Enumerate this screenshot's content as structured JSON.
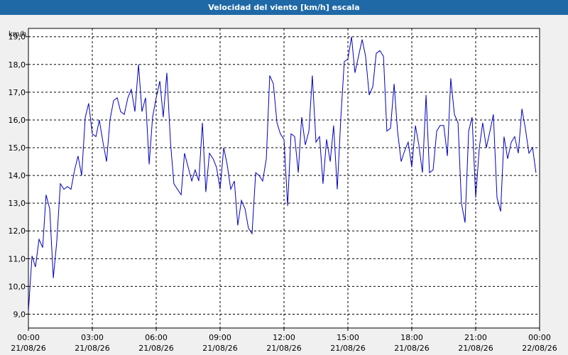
{
  "window": {
    "title": "Velocidad del viento [km/h] escala"
  },
  "colors": {
    "title_bar": "#1f69a6",
    "series_line": "#0000c0",
    "grid": "#000000",
    "background": "#f0f0f0",
    "plot_bg": "#ffffff"
  },
  "chart_data": {
    "type": "line",
    "title": "Velocidad del viento [km/h] escala",
    "ylabel": "km/h",
    "xlabel": "",
    "ylim": [
      8.5,
      19.3
    ],
    "xlim_hours": [
      0,
      24
    ],
    "grid": true,
    "y_ticks": [
      "9,0",
      "10,0",
      "11,0",
      "12,0",
      "13,0",
      "14,0",
      "15,0",
      "16,0",
      "17,0",
      "18,0",
      "19,0"
    ],
    "x_ticks": [
      {
        "time": "00:00",
        "date": "21/08/26"
      },
      {
        "time": "03:00",
        "date": "21/08/26"
      },
      {
        "time": "06:00",
        "date": "21/08/26"
      },
      {
        "time": "09:00",
        "date": "21/08/26"
      },
      {
        "time": "12:00",
        "date": "21/08/26"
      },
      {
        "time": "15:00",
        "date": "21/08/26"
      },
      {
        "time": "18:00",
        "date": "21/08/26"
      },
      {
        "time": "21:00",
        "date": "21/08/26"
      },
      {
        "time": "00:00",
        "date": "22/08/26"
      }
    ],
    "series": [
      {
        "points": [
          [
            0.0,
            9.1
          ],
          [
            0.17,
            11.1
          ],
          [
            0.33,
            10.7
          ],
          [
            0.5,
            11.7
          ],
          [
            0.67,
            11.4
          ],
          [
            0.83,
            13.3
          ],
          [
            1.0,
            12.8
          ],
          [
            1.17,
            10.3
          ],
          [
            1.33,
            11.6
          ],
          [
            1.5,
            13.7
          ],
          [
            1.67,
            13.5
          ],
          [
            1.83,
            13.6
          ],
          [
            2.0,
            13.5
          ],
          [
            2.17,
            14.2
          ],
          [
            2.33,
            14.7
          ],
          [
            2.5,
            14.0
          ],
          [
            2.67,
            16.1
          ],
          [
            2.83,
            16.6
          ],
          [
            3.0,
            15.5
          ],
          [
            3.17,
            15.4
          ],
          [
            3.33,
            16.0
          ],
          [
            3.5,
            15.2
          ],
          [
            3.67,
            14.5
          ],
          [
            3.83,
            16.0
          ],
          [
            4.0,
            16.7
          ],
          [
            4.17,
            16.8
          ],
          [
            4.33,
            16.3
          ],
          [
            4.5,
            16.2
          ],
          [
            4.67,
            16.8
          ],
          [
            4.83,
            17.1
          ],
          [
            5.0,
            16.3
          ],
          [
            5.17,
            18.0
          ],
          [
            5.33,
            16.3
          ],
          [
            5.5,
            16.8
          ],
          [
            5.67,
            14.4
          ],
          [
            5.83,
            16.1
          ],
          [
            6.0,
            16.8
          ],
          [
            6.17,
            17.4
          ],
          [
            6.33,
            16.1
          ],
          [
            6.5,
            17.7
          ],
          [
            6.67,
            15.2
          ],
          [
            6.83,
            13.7
          ],
          [
            7.0,
            13.5
          ],
          [
            7.17,
            13.3
          ],
          [
            7.33,
            14.8
          ],
          [
            7.5,
            14.3
          ],
          [
            7.67,
            13.8
          ],
          [
            7.83,
            14.2
          ],
          [
            8.0,
            13.8
          ],
          [
            8.17,
            15.9
          ],
          [
            8.33,
            13.4
          ],
          [
            8.5,
            14.8
          ],
          [
            8.67,
            14.6
          ],
          [
            8.83,
            14.3
          ],
          [
            9.0,
            13.5
          ],
          [
            9.17,
            15.0
          ],
          [
            9.33,
            14.4
          ],
          [
            9.5,
            13.5
          ],
          [
            9.67,
            13.8
          ],
          [
            9.83,
            12.2
          ],
          [
            10.0,
            13.1
          ],
          [
            10.17,
            12.8
          ],
          [
            10.33,
            12.1
          ],
          [
            10.5,
            11.9
          ],
          [
            10.67,
            14.1
          ],
          [
            10.83,
            14.0
          ],
          [
            11.0,
            13.8
          ],
          [
            11.17,
            14.6
          ],
          [
            11.33,
            17.6
          ],
          [
            11.5,
            17.3
          ],
          [
            11.67,
            15.9
          ],
          [
            11.83,
            15.5
          ],
          [
            12.0,
            15.3
          ],
          [
            12.17,
            12.9
          ],
          [
            12.33,
            15.5
          ],
          [
            12.5,
            15.4
          ],
          [
            12.67,
            14.1
          ],
          [
            12.83,
            16.1
          ],
          [
            13.0,
            15.1
          ],
          [
            13.17,
            15.6
          ],
          [
            13.33,
            17.6
          ],
          [
            13.5,
            15.2
          ],
          [
            13.67,
            15.4
          ],
          [
            13.83,
            13.7
          ],
          [
            14.0,
            15.3
          ],
          [
            14.17,
            14.5
          ],
          [
            14.33,
            15.8
          ],
          [
            14.5,
            13.5
          ],
          [
            14.67,
            16.1
          ],
          [
            14.83,
            18.1
          ],
          [
            15.0,
            18.2
          ],
          [
            15.17,
            19.0
          ],
          [
            15.33,
            17.7
          ],
          [
            15.5,
            18.3
          ],
          [
            15.67,
            18.9
          ],
          [
            15.83,
            18.3
          ],
          [
            16.0,
            16.9
          ],
          [
            16.17,
            17.2
          ],
          [
            16.33,
            18.4
          ],
          [
            16.5,
            18.5
          ],
          [
            16.67,
            18.3
          ],
          [
            16.83,
            15.6
          ],
          [
            17.0,
            15.7
          ],
          [
            17.17,
            17.3
          ],
          [
            17.33,
            15.6
          ],
          [
            17.5,
            14.5
          ],
          [
            17.67,
            14.9
          ],
          [
            17.83,
            15.2
          ],
          [
            18.0,
            14.3
          ],
          [
            18.17,
            15.8
          ],
          [
            18.33,
            15.1
          ],
          [
            18.5,
            14.1
          ],
          [
            18.67,
            16.9
          ],
          [
            18.83,
            14.1
          ],
          [
            19.0,
            14.2
          ],
          [
            19.17,
            15.6
          ],
          [
            19.33,
            15.8
          ],
          [
            19.5,
            15.8
          ],
          [
            19.67,
            14.7
          ],
          [
            19.83,
            17.5
          ],
          [
            20.0,
            16.2
          ],
          [
            20.17,
            15.9
          ],
          [
            20.33,
            13.0
          ],
          [
            20.5,
            12.3
          ],
          [
            20.67,
            15.6
          ],
          [
            20.83,
            16.1
          ],
          [
            21.0,
            13.2
          ],
          [
            21.17,
            15.0
          ],
          [
            21.33,
            15.9
          ],
          [
            21.5,
            15.0
          ],
          [
            21.67,
            15.6
          ],
          [
            21.83,
            16.2
          ],
          [
            22.0,
            13.2
          ],
          [
            22.17,
            12.7
          ],
          [
            22.33,
            15.4
          ],
          [
            22.5,
            14.6
          ],
          [
            22.67,
            15.2
          ],
          [
            22.83,
            15.4
          ],
          [
            23.0,
            14.8
          ],
          [
            23.17,
            16.4
          ],
          [
            23.33,
            15.7
          ],
          [
            23.5,
            14.8
          ],
          [
            23.67,
            15.0
          ],
          [
            23.83,
            14.1
          ]
        ]
      }
    ]
  }
}
